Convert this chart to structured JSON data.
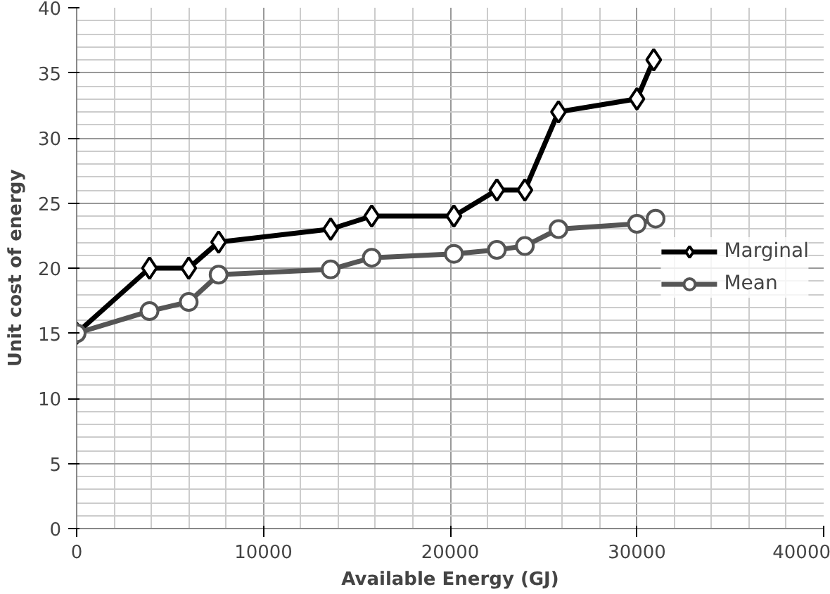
{
  "chart_data": {
    "type": "line",
    "xlabel": "Available Energy (GJ)",
    "ylabel": "Unit cost of energy",
    "xlim": [
      0,
      40000
    ],
    "xticks": [
      0,
      10000,
      20000,
      30000,
      40000
    ],
    "ylim": [
      0,
      40
    ],
    "yticks": [
      0,
      5,
      10,
      15,
      20,
      25,
      30,
      35,
      40
    ],
    "grid": true,
    "legend": "right",
    "line_style": "solid",
    "series": [
      {
        "name": "Marginal",
        "color": "#000000",
        "marker": "diamond",
        "x": [
          0,
          3900,
          6000,
          7600,
          13600,
          15800,
          20200,
          22500,
          24000,
          25800,
          30000,
          30900
        ],
        "values": [
          15,
          20,
          20,
          22,
          23,
          24,
          24,
          26,
          26,
          32,
          33,
          36
        ]
      },
      {
        "name": "Mean",
        "color": "#555555",
        "marker": "circle",
        "x": [
          0,
          3900,
          6000,
          7600,
          13600,
          15800,
          20200,
          22500,
          24000,
          25800,
          30000,
          31000
        ],
        "values": [
          15,
          16.7,
          17.4,
          19.5,
          19.9,
          20.8,
          21.1,
          21.4,
          21.7,
          23.0,
          23.4,
          23.8
        ]
      }
    ]
  }
}
